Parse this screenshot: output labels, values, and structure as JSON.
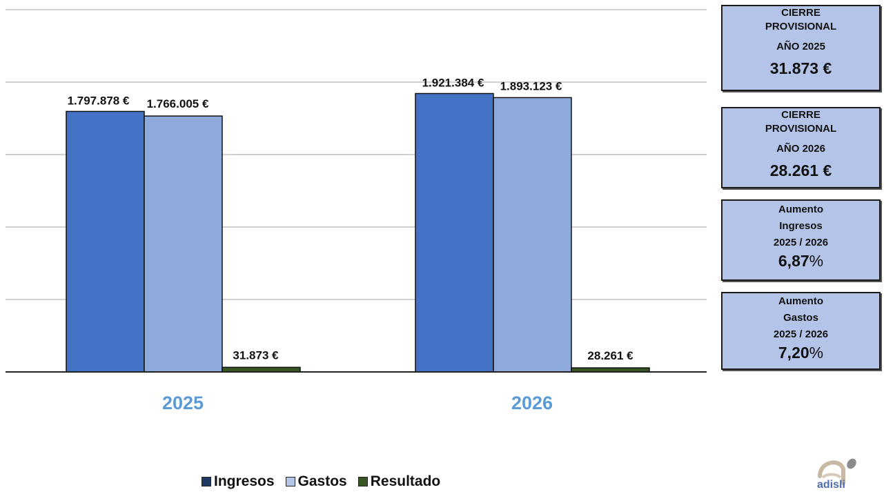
{
  "chart_data": {
    "type": "bar",
    "categories": [
      "2025",
      "2026"
    ],
    "series": [
      {
        "name": "Ingresos",
        "values": [
          1797878,
          1921384
        ],
        "labels": [
          "1.797.878 €",
          "1.921.384 €"
        ],
        "color": "#4472c4"
      },
      {
        "name": "Gastos",
        "values": [
          1766005,
          1893123
        ],
        "labels": [
          "1.766.005 €",
          "1.893.123 €"
        ],
        "color": "#8eaadb"
      },
      {
        "name": "Resultado",
        "values": [
          31873,
          28261
        ],
        "labels": [
          "31.873 €",
          "28.261 €"
        ],
        "color": "#375623"
      }
    ],
    "ylim": [
      0,
      2500000
    ],
    "grid": true,
    "legend_position": "bottom",
    "category_label_color": "#5b9bd5",
    "legend_swatch_colors": [
      "#1f3864",
      "#b4c6e7",
      "#375623"
    ]
  },
  "info_boxes": [
    {
      "lines": [
        "CIERRE",
        "PROVISIONAL",
        "AÑO 2025"
      ],
      "value": "31.873",
      "unit": "€"
    },
    {
      "lines": [
        "CIERRE",
        "PROVISIONAL",
        "AÑO 2026"
      ],
      "value": "28.261",
      "unit": "€"
    },
    {
      "lines": [
        "Aumento",
        "Ingresos",
        "2025 / 2026"
      ],
      "value": "6,87",
      "unit": "%"
    },
    {
      "lines": [
        "Aumento",
        "Gastos",
        "2025 / 2026"
      ],
      "value": "7,20",
      "unit": "%"
    }
  ],
  "logo": {
    "text": "adisli",
    "icon": "adisli-logo-icon"
  }
}
